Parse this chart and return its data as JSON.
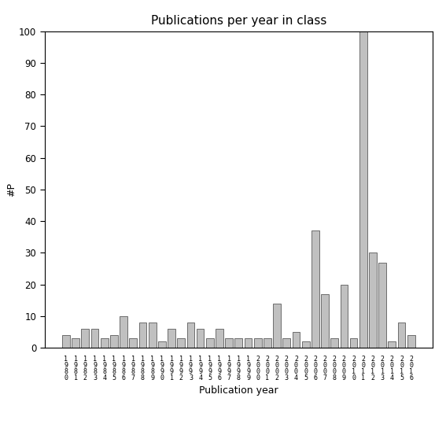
{
  "title": "Publications per year in class",
  "xlabel": "Publication year",
  "ylabel": "#P",
  "bar_color": "#c0c0c0",
  "edge_color": "#404040",
  "background_color": "#ffffff",
  "ylim": [
    0,
    100
  ],
  "yticks": [
    0,
    10,
    20,
    30,
    40,
    50,
    60,
    70,
    80,
    90,
    100
  ],
  "years": [
    "1\n9\n8\n0",
    "1\n9\n8\n1",
    "1\n9\n8\n2",
    "1\n9\n8\n3",
    "1\n9\n8\n4",
    "1\n9\n8\n5",
    "1\n9\n8\n6",
    "1\n9\n8\n7",
    "1\n9\n8\n8",
    "1\n9\n8\n9",
    "1\n9\n9\n0",
    "1\n9\n9\n1",
    "1\n9\n9\n2",
    "1\n9\n9\n3",
    "1\n9\n9\n4",
    "1\n9\n9\n5",
    "1\n9\n9\n6",
    "1\n9\n9\n7",
    "1\n9\n9\n8",
    "1\n9\n9\n9",
    "2\n0\n0\n0",
    "2\n0\n0\n1",
    "2\n0\n0\n2",
    "2\n0\n0\n3",
    "2\n0\n0\n4",
    "2\n0\n0\n5",
    "2\n0\n0\n6",
    "2\n0\n0\n7",
    "2\n0\n0\n8",
    "2\n0\n0\n9",
    "2\n0\n1\n0",
    "2\n0\n1\n1",
    "2\n0\n1\n2",
    "2\n0\n1\n3",
    "2\n0\n1\n4",
    "2\n0\n1\n5",
    "2\n0\n1\n6"
  ],
  "values": [
    4,
    3,
    6,
    6,
    3,
    4,
    10,
    3,
    8,
    8,
    2,
    6,
    3,
    8,
    6,
    3,
    6,
    3,
    3,
    3,
    3,
    3,
    14,
    3,
    5,
    2,
    37,
    17,
    3,
    20,
    3,
    100,
    30,
    27,
    2,
    8,
    4
  ],
  "title_fontsize": 11,
  "label_fontsize": 9,
  "tick_fontsize": 8.5,
  "xtick_fontsize": 6.0
}
